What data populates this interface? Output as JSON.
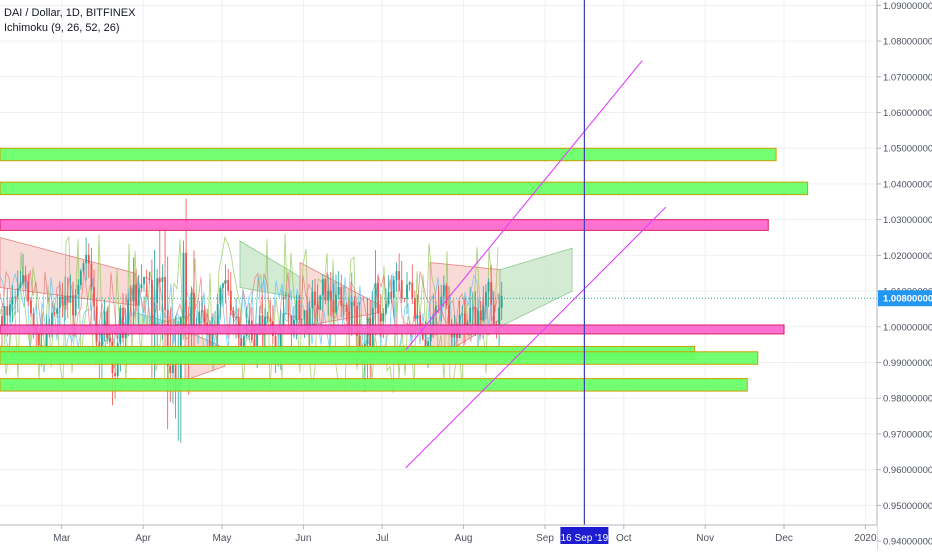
{
  "header": {
    "symbol_title": "DAI / Dollar, 1D, BITFINEX",
    "indicator": "Ichimoku (9, 26, 52, 26)"
  },
  "chart_data": {
    "type": "candlestick",
    "title": "DAI / Dollar, 1D, BITFINEX",
    "indicator": "Ichimoku (9, 26, 52, 26)",
    "x_ticks": [
      "Mar",
      "Apr",
      "May",
      "Jun",
      "Jul",
      "Aug",
      "Sep",
      "Oct",
      "Nov",
      "Dec",
      "2020"
    ],
    "y_ticks": [
      "1.09000000",
      "1.08000000",
      "1.07000000",
      "1.06000000",
      "1.05000000",
      "1.04000000",
      "1.03000000",
      "1.02000000",
      "1.01000000",
      "1.00000000",
      "0.99000000",
      "0.98000000",
      "0.97000000",
      "0.96000000",
      "0.95000000",
      "0.94000000"
    ],
    "y_values": [
      1.09,
      1.08,
      1.07,
      1.06,
      1.05,
      1.04,
      1.03,
      1.02,
      1.01,
      1.0,
      0.99,
      0.98,
      0.97,
      0.96,
      0.95,
      0.94
    ],
    "ylim": [
      0.9375,
      1.0915
    ],
    "last_price_label": "1.00800000",
    "last_price": 1.008,
    "cursor_date_label": "16 Sep '19",
    "grid": true,
    "horizontal_zones": [
      {
        "color": "#66ff66",
        "low": 1.0465,
        "high": 1.05,
        "end": "2019-11-28"
      },
      {
        "color": "#66ff66",
        "low": 1.037,
        "high": 1.0405,
        "end": "2019-12-10"
      },
      {
        "color": "#ff66cc",
        "low": 1.027,
        "high": 1.03,
        "end": "2019-11-25"
      },
      {
        "color": "#ff66cc",
        "low": 0.998,
        "high": 1.0005,
        "end": "2019-12-01"
      },
      {
        "color": "#66ff66",
        "low": 0.9908,
        "high": 0.9945,
        "end": "2019-10-28"
      },
      {
        "color": "#66ff66",
        "low": 0.9895,
        "high": 0.993,
        "end": "2019-11-21"
      },
      {
        "color": "#66ff66",
        "low": 0.982,
        "high": 0.9855,
        "end": "2019-11-17"
      }
    ],
    "trend_channel": [
      {
        "from": [
          "2019-07-10",
          0.9605
        ],
        "to": [
          "2019-10-17",
          1.0335
        ]
      },
      {
        "from": [
          "2019-07-10",
          0.9935
        ],
        "to": [
          "2019-10-08",
          1.0745
        ]
      }
    ],
    "vertical_line": "2019-09-16",
    "colors": {
      "up": "#26a69a",
      "down": "#ef5350",
      "green_zone_fill": "#66ff66",
      "green_zone_border": "#c8a000",
      "pink_zone_fill": "#ff66cc",
      "pink_zone_border": "#d81b60",
      "channel": "#e040fb",
      "vertical_line": "#3f3fb5",
      "price_label_bg": "#2196f3",
      "date_label_bg": "#1d1dcf",
      "cloud_bull": "#cfe8cf",
      "cloud_bear": "#f8d7d2"
    }
  }
}
